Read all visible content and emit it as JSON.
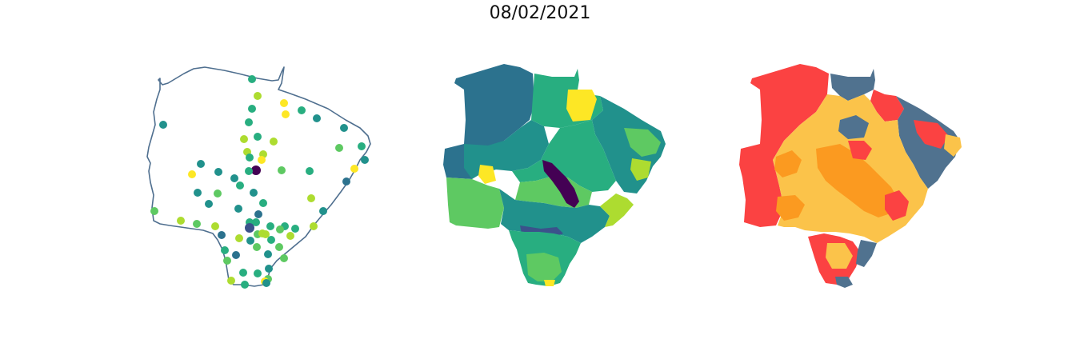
{
  "figure": {
    "title": "08/02/2021"
  },
  "colors": {
    "outline": "#4f6f8f",
    "viridis": [
      "#440154",
      "#3b528b",
      "#2c728e",
      "#21918c",
      "#28ae80",
      "#5ec962",
      "#addc30",
      "#fde725"
    ],
    "categories": [
      "#fb4242",
      "#fbc34a",
      "#fb9a20",
      "#50728f"
    ]
  },
  "panels": [
    {
      "name": "stations",
      "type": "point-map"
    },
    {
      "name": "choropleth",
      "type": "choropleth"
    },
    {
      "name": "categories",
      "type": "categorical-choropleth"
    }
  ]
}
